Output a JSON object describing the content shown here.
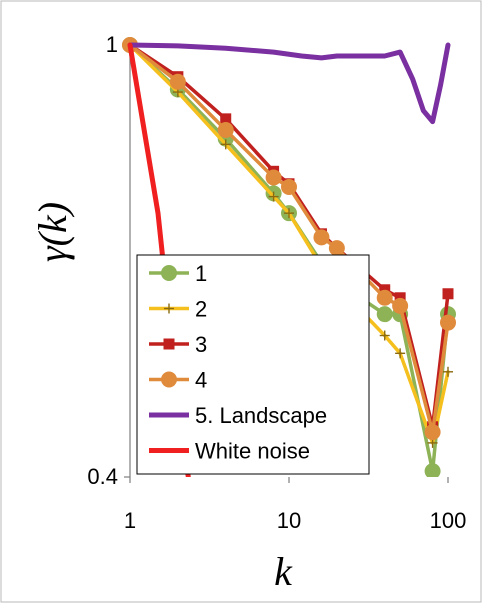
{
  "chart_data": {
    "type": "line",
    "title": "",
    "xlabel": "k",
    "ylabel": "γ(k)",
    "xscale": "log",
    "yscale": "log",
    "xlim": [
      1,
      100
    ],
    "ylim": [
      0.4,
      1
    ],
    "xticks": [
      "1",
      "10",
      "100"
    ],
    "yticks": [
      "0.4",
      "1"
    ],
    "xtick_values": [
      1,
      10,
      100
    ],
    "ytick_values": [
      0.4,
      1
    ],
    "grid": false,
    "legend_position": "lower-left",
    "series": [
      {
        "name": "1",
        "color": "#8db356",
        "marker": "circle",
        "x": [
          1,
          2,
          4,
          8,
          10,
          16,
          20,
          40,
          50,
          80,
          100
        ],
        "y": [
          1,
          0.91,
          0.82,
          0.73,
          0.7,
          0.63,
          0.605,
          0.565,
          0.565,
          0.405,
          0.565
        ]
      },
      {
        "name": "2",
        "color": "#f5c01d",
        "marker": "plus",
        "x": [
          1,
          2,
          4,
          8,
          10,
          16,
          20,
          40,
          50,
          80,
          100
        ],
        "y": [
          1,
          0.905,
          0.81,
          0.725,
          0.7,
          0.625,
          0.6,
          0.54,
          0.52,
          0.43,
          0.5
        ]
      },
      {
        "name": "3",
        "color": "#c0201e",
        "marker": "square",
        "x": [
          1,
          2,
          4,
          8,
          10,
          16,
          20,
          40,
          50,
          80,
          100
        ],
        "y": [
          1,
          0.935,
          0.855,
          0.765,
          0.745,
          0.67,
          0.65,
          0.595,
          0.585,
          0.445,
          0.59
        ]
      },
      {
        "name": "4",
        "color": "#e08a3c",
        "marker": "circle",
        "x": [
          1,
          2,
          4,
          8,
          10,
          16,
          20,
          40,
          50,
          80,
          100
        ],
        "y": [
          1,
          0.925,
          0.835,
          0.755,
          0.74,
          0.665,
          0.65,
          0.585,
          0.575,
          0.44,
          0.555
        ]
      },
      {
        "name": "5. Landscape",
        "color": "#7a30a0",
        "marker": "none",
        "x": [
          1,
          2,
          4,
          8,
          12,
          16,
          20,
          40,
          50,
          60,
          70,
          80,
          90,
          100
        ],
        "y": [
          1,
          0.998,
          0.993,
          0.985,
          0.977,
          0.973,
          0.977,
          0.977,
          0.985,
          0.93,
          0.87,
          0.85,
          0.92,
          1
        ]
      },
      {
        "name": "White noise",
        "color": "#f02020",
        "marker": "none",
        "x": [
          1,
          1.5,
          2,
          2.5
        ],
        "y": [
          1,
          0.7,
          0.47,
          0.37
        ]
      }
    ]
  }
}
